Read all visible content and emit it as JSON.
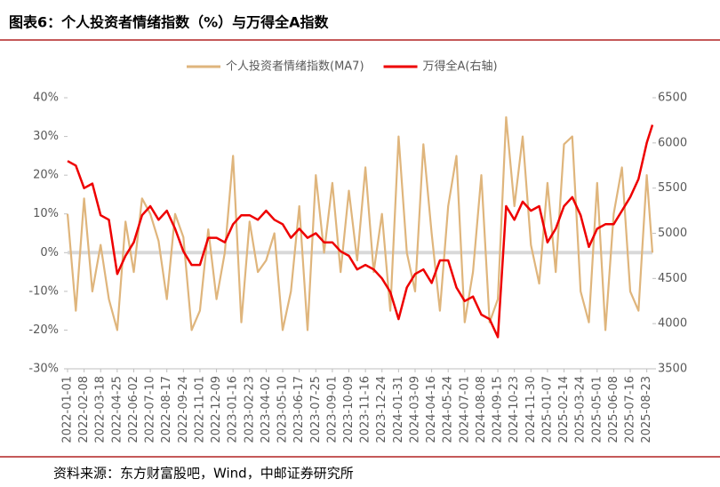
{
  "chart_data": {
    "type": "line",
    "title": "图表6：个人投资者情绪指数（%）与万得全A指数",
    "source": "资料来源：东方财富股吧，Wind，中邮证券研究所",
    "x": [
      "2022-01-01",
      "2022-01-20",
      "2022-02-08",
      "2022-02-27",
      "2022-03-18",
      "2022-04-06",
      "2022-04-25",
      "2022-05-14",
      "2022-06-02",
      "2022-06-21",
      "2022-07-10",
      "2022-07-29",
      "2022-08-17",
      "2022-09-05",
      "2022-09-24",
      "2022-10-13",
      "2022-11-01",
      "2022-11-20",
      "2022-12-09",
      "2022-12-28",
      "2023-01-16",
      "2023-02-04",
      "2023-02-23",
      "2023-03-14",
      "2023-04-02",
      "2023-04-21",
      "2023-05-10",
      "2023-05-29",
      "2023-06-17",
      "2023-07-06",
      "2023-07-25",
      "2023-08-13",
      "2023-09-01",
      "2023-09-20",
      "2023-10-09",
      "2023-10-28",
      "2023-11-16",
      "2023-12-05",
      "2023-12-24",
      "2024-01-12",
      "2024-01-31",
      "2024-02-19",
      "2024-03-09",
      "2024-03-28",
      "2024-04-16",
      "2024-05-05",
      "2024-05-24",
      "2024-06-12",
      "2024-07-01",
      "2024-07-20",
      "2024-08-08",
      "2024-08-27",
      "2024-09-15",
      "2024-10-04",
      "2024-10-23",
      "2024-11-11",
      "2024-11-30",
      "2024-12-19",
      "2025-01-07",
      "2025-01-26",
      "2025-02-14",
      "2025-03-05",
      "2025-03-24",
      "2025-04-12",
      "2025-05-01",
      "2025-05-20",
      "2025-06-08",
      "2025-06-27",
      "2025-07-16",
      "2025-08-04",
      "2025-08-23",
      "2025-09-05"
    ],
    "xlim": [
      "2022-01-01",
      "2025-09-05"
    ],
    "xticks": [
      "2022-01-01",
      "2022-02-08",
      "2022-03-18",
      "2022-04-25",
      "2022-06-02",
      "2022-07-10",
      "2022-08-17",
      "2022-09-24",
      "2022-11-01",
      "2022-12-09",
      "2023-01-16",
      "2023-02-23",
      "2023-04-02",
      "2023-05-10",
      "2023-06-17",
      "2023-07-25",
      "2023-09-01",
      "2023-10-09",
      "2023-11-16",
      "2023-12-24",
      "2024-01-31",
      "2024-03-09",
      "2024-04-16",
      "2024-05-24",
      "2024-07-01",
      "2024-08-08",
      "2024-09-15",
      "2024-10-23",
      "2024-11-30",
      "2025-01-07",
      "2025-02-14",
      "2025-03-24",
      "2025-05-01",
      "2025-06-08",
      "2025-07-16",
      "2025-08-23"
    ],
    "ylim": [
      -30,
      40
    ],
    "yticks": [
      {
        "value": -30,
        "label": "-30%"
      },
      {
        "value": -20,
        "label": "-20%"
      },
      {
        "value": -10,
        "label": "-10%"
      },
      {
        "value": 0,
        "label": "0%"
      },
      {
        "value": 10,
        "label": "10%"
      },
      {
        "value": 20,
        "label": "20%"
      },
      {
        "value": 30,
        "label": "30%"
      },
      {
        "value": 40,
        "label": "40%"
      }
    ],
    "y2lim": [
      3500,
      6500
    ],
    "y2ticks": [
      3500,
      4000,
      4500,
      5000,
      5500,
      6000,
      6500
    ],
    "series": [
      {
        "name": "个人投资者情绪指数(MA7)",
        "color": "#dfb57c",
        "values": [
          10,
          -15,
          14,
          -10,
          2,
          -12,
          -20,
          8,
          -5,
          14,
          10,
          3,
          -12,
          10,
          4,
          -20,
          -15,
          6,
          -12,
          0,
          25,
          -18,
          8,
          -5,
          -2,
          5,
          -20,
          -10,
          12,
          -20,
          20,
          0,
          18,
          -5,
          16,
          -2,
          22,
          -5,
          10,
          -15,
          30,
          0,
          -10,
          28,
          5,
          -15,
          12,
          25,
          -18,
          -5,
          20,
          -18,
          -12,
          35,
          12,
          30,
          2,
          -8,
          18,
          -5,
          28,
          30,
          -10,
          -18,
          18,
          -20,
          10,
          22,
          -10,
          -15,
          20,
          0
        ]
      },
      {
        "name": "万得全A(右轴)",
        "color": "#ee0000",
        "axis": "y2",
        "values": [
          5800,
          5750,
          5500,
          5550,
          5200,
          5150,
          4550,
          4750,
          4900,
          5200,
          5300,
          5150,
          5250,
          5050,
          4800,
          4650,
          4650,
          4950,
          4950,
          4900,
          5100,
          5200,
          5200,
          5150,
          5250,
          5150,
          5100,
          4950,
          5050,
          4950,
          5000,
          4900,
          4900,
          4800,
          4750,
          4600,
          4650,
          4600,
          4500,
          4350,
          4050,
          4400,
          4550,
          4600,
          4450,
          4700,
          4700,
          4400,
          4250,
          4300,
          4100,
          4050,
          3850,
          5300,
          5150,
          5350,
          5250,
          5300,
          4900,
          5050,
          5300,
          5400,
          5200,
          4850,
          5050,
          5100,
          5100,
          5250,
          5400,
          5600,
          6000,
          6200
        ]
      }
    ]
  }
}
